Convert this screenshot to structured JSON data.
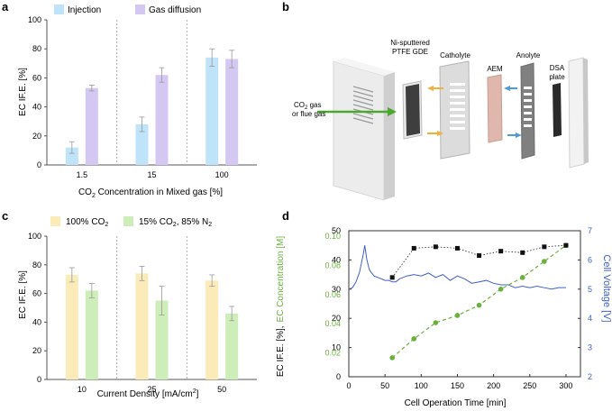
{
  "colors": {
    "injection": "#bfe3f8",
    "gas_diffusion": "#d4c8f3",
    "co2_100": "#fbebb9",
    "co2_15": "#cdeeb9",
    "voltage": "#3f5fc7",
    "ec_conc": "#6ab03c",
    "fe_marker": "#111111",
    "axis": "#555555",
    "divider": "#aaaaaa"
  },
  "panels": {
    "a": {
      "letter": "a"
    },
    "b": {
      "letter": "b",
      "labels": {
        "gde": [
          "Ni-sputtered",
          "PTFE GDE"
        ],
        "catholyte": "Catholyte",
        "aem": "AEM",
        "anolyte": "Anolyte",
        "dsa": [
          "DSA",
          "plate"
        ],
        "gas": [
          "CO2 gas",
          "or flue gas"
        ]
      }
    },
    "c": {
      "letter": "c"
    },
    "d": {
      "letter": "d"
    }
  },
  "chart_data": [
    {
      "panel": "a",
      "type": "bar",
      "categories": [
        "1.5",
        "15",
        "100"
      ],
      "series": [
        {
          "name": "Injection",
          "values": [
            12,
            28,
            74
          ],
          "errors": [
            4,
            5,
            6
          ]
        },
        {
          "name": "Gas diffusion",
          "values": [
            53,
            62,
            73
          ],
          "errors": [
            2,
            5,
            6
          ]
        }
      ],
      "xlabel": "CO2 Concentration in Mixed gas [%]",
      "ylabel": "EC IF.E. [%]",
      "ylim": [
        0,
        100
      ],
      "yticks": [
        "0",
        "20",
        "40",
        "60",
        "80",
        "100"
      ],
      "legend": "top-left"
    },
    {
      "panel": "c",
      "type": "bar",
      "categories": [
        "10",
        "25",
        "50"
      ],
      "series": [
        {
          "name": "100% CO2",
          "values": [
            73,
            74,
            69
          ],
          "errors": [
            5,
            5,
            4
          ]
        },
        {
          "name": "15% CO2, 85% N2",
          "values": [
            62,
            55,
            46
          ],
          "errors": [
            5,
            10,
            5
          ]
        }
      ],
      "xlabel": "Current Density [mA/cm2]",
      "ylabel": "EC IF.E. [%]",
      "ylim": [
        0,
        100
      ],
      "yticks": [
        "0",
        "20",
        "40",
        "60",
        "80",
        "100"
      ],
      "legend": "top-left"
    },
    {
      "panel": "d",
      "type": "line",
      "xlabel": "Cell Operation Time [min]",
      "xlim": [
        0,
        320
      ],
      "xticks": [
        "0",
        "50",
        "100",
        "150",
        "200",
        "250",
        "300"
      ],
      "ylabel_left": [
        "EC IF.E. [%],",
        "EC Concentration [M]"
      ],
      "ylabel_right": "Cell Voltage [V]",
      "y_fe": {
        "lim": [
          0,
          50
        ],
        "ticks": [
          "0",
          "10",
          "20",
          "30",
          "40",
          "50"
        ]
      },
      "y_conc": {
        "lim": [
          0,
          0.1
        ],
        "ticks": [
          "0.02",
          "0.04",
          "0.06",
          "0.08",
          "0.10"
        ]
      },
      "y_voltage": {
        "lim": [
          2,
          7
        ],
        "ticks": [
          "2",
          "3",
          "4",
          "5",
          "6",
          "7"
        ]
      },
      "series": [
        {
          "name": "EC IF.E.",
          "axis": "fe",
          "style": "black squares, dotted",
          "x": [
            60,
            90,
            120,
            150,
            180,
            210,
            240,
            270,
            300
          ],
          "y": [
            34,
            44,
            44.5,
            44,
            41.5,
            43,
            42.5,
            44.5,
            45
          ]
        },
        {
          "name": "EC Concentration",
          "axis": "conc",
          "style": "green dots, dashed",
          "x": [
            60,
            90,
            120,
            150,
            180,
            210,
            240,
            270,
            300
          ],
          "y": [
            0.013,
            0.026,
            0.037,
            0.042,
            0.049,
            0.06,
            0.068,
            0.079,
            0.09
          ]
        },
        {
          "name": "Cell Voltage",
          "axis": "voltage",
          "style": "blue line",
          "x": [
            0,
            5,
            10,
            15,
            20,
            22,
            25,
            28,
            30,
            35,
            40,
            45,
            50,
            55,
            60,
            65,
            70,
            75,
            80,
            90,
            100,
            110,
            120,
            130,
            140,
            150,
            160,
            170,
            180,
            190,
            200,
            210,
            220,
            230,
            240,
            250,
            260,
            270,
            280,
            290,
            300
          ],
          "y": [
            5.0,
            5.05,
            5.25,
            5.6,
            6.2,
            6.5,
            6.0,
            5.7,
            5.6,
            5.45,
            5.4,
            5.35,
            5.3,
            5.3,
            5.25,
            5.25,
            5.35,
            5.4,
            5.45,
            5.5,
            5.45,
            5.55,
            5.4,
            5.5,
            5.3,
            5.45,
            5.35,
            5.2,
            5.25,
            5.3,
            5.2,
            5.15,
            5.15,
            5.05,
            5.1,
            5.05,
            5.1,
            5.05,
            5.0,
            5.05,
            5.05
          ]
        }
      ]
    }
  ]
}
